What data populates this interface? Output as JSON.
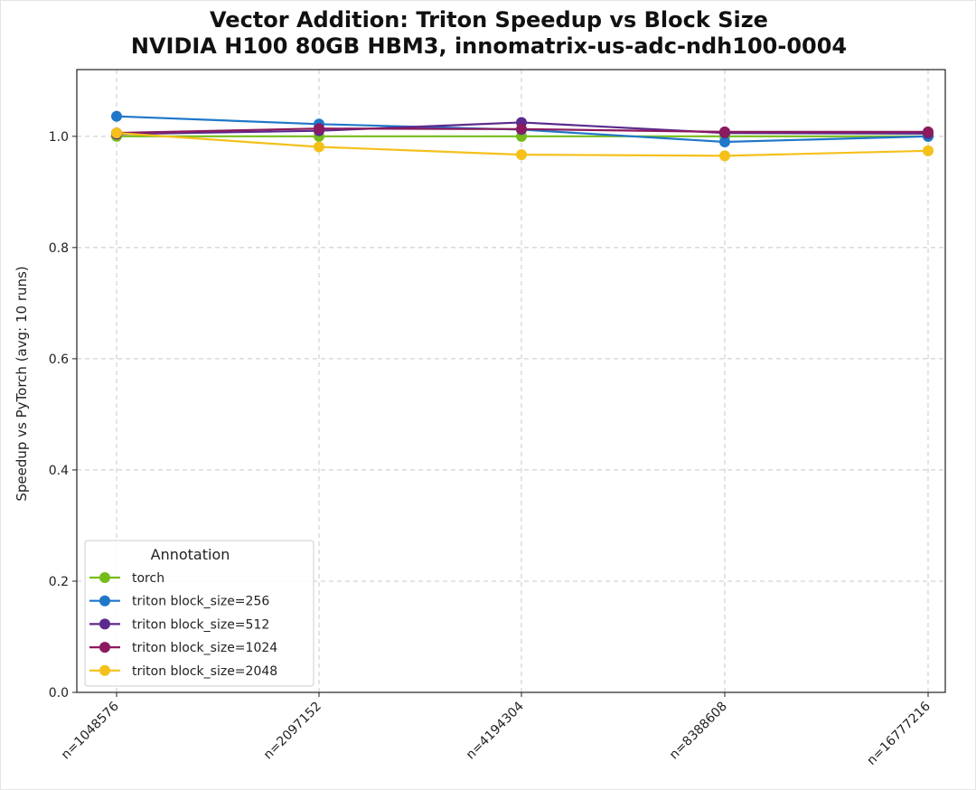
{
  "chart_data": {
    "type": "line",
    "title": "Vector Addition: Triton Speedup vs Block Size",
    "subtitle": "NVIDIA H100 80GB HBM3, innomatrix-us-adc-ndh100-0004",
    "xlabel": "",
    "ylabel": "Speedup vs PyTorch (avg: 10 runs)",
    "categories": [
      "n=1048576",
      "n=2097152",
      "n=4194304",
      "n=8388608",
      "n=16777216"
    ],
    "ylim": [
      0.0,
      1.12
    ],
    "yticks": [
      0.0,
      0.2,
      0.4,
      0.6,
      0.8,
      1.0
    ],
    "ytick_labels": [
      "0.0",
      "0.2",
      "0.4",
      "0.6",
      "0.8",
      "1.0"
    ],
    "grid": true,
    "legend": {
      "title": "Annotation",
      "position": "lower-left"
    },
    "series": [
      {
        "name": "torch",
        "color": "#77bb1b",
        "values": [
          1.0,
          1.0,
          1.0,
          1.0,
          1.0
        ]
      },
      {
        "name": "triton block_size=256",
        "color": "#1f77c9",
        "values": [
          1.036,
          1.022,
          1.012,
          0.99,
          1.0
        ]
      },
      {
        "name": "triton block_size=512",
        "color": "#5c2a8c",
        "values": [
          1.004,
          1.01,
          1.025,
          1.006,
          1.005
        ]
      },
      {
        "name": "triton block_size=1024",
        "color": "#8b1a5e",
        "values": [
          1.006,
          1.014,
          1.013,
          1.008,
          1.008
        ]
      },
      {
        "name": "triton block_size=2048",
        "color": "#f5c01a",
        "values": [
          1.006,
          0.981,
          0.967,
          0.965,
          0.974
        ]
      }
    ]
  }
}
